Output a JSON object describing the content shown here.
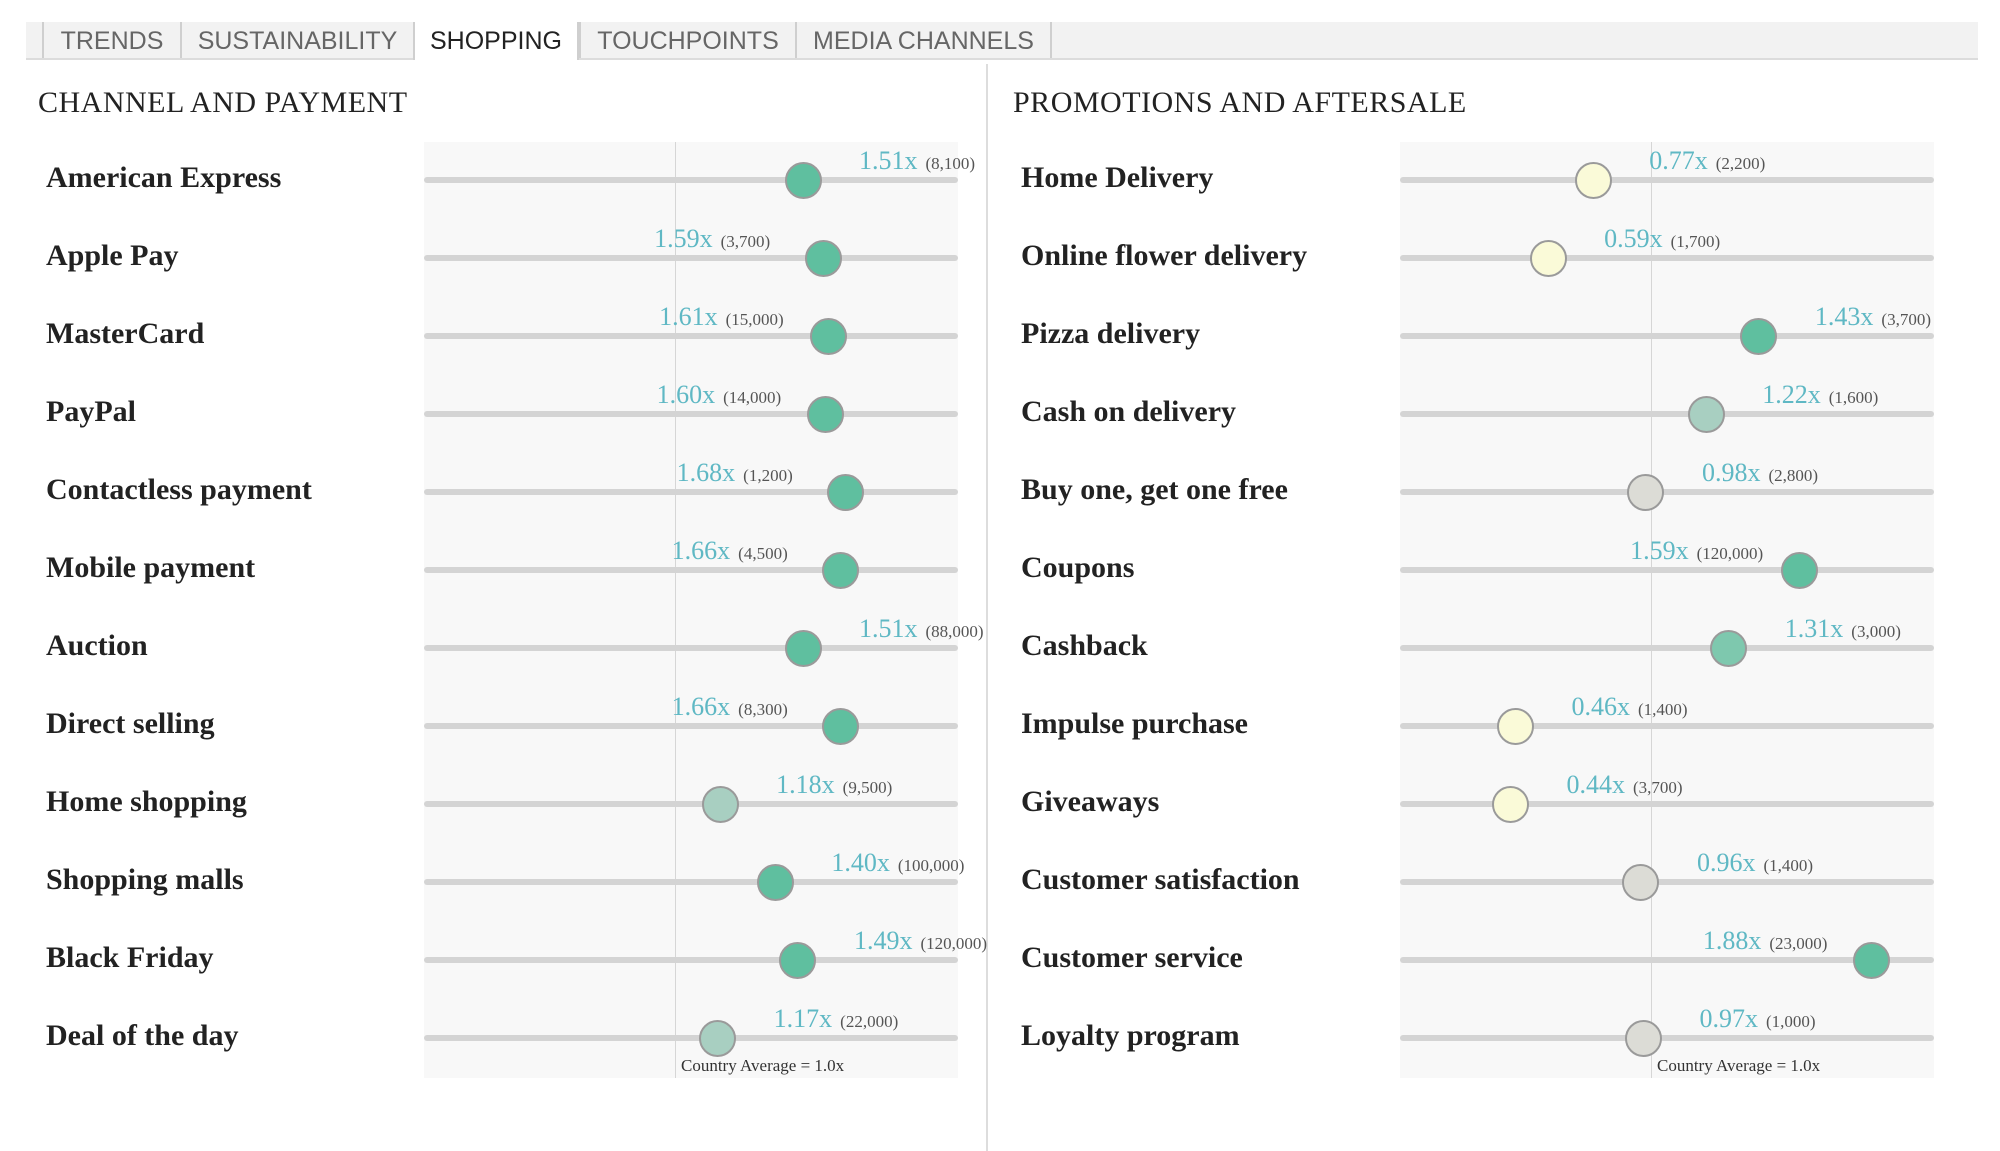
{
  "tabs": [
    {
      "label": "TRENDS",
      "active": false
    },
    {
      "label": "SUSTAINABILITY",
      "active": false
    },
    {
      "label": "SHOPPING",
      "active": true
    },
    {
      "label": "TOUCHPOINTS",
      "active": false
    },
    {
      "label": "MEDIA CHANNELS",
      "active": false
    }
  ],
  "colors": {
    "high": "#5fbf9f",
    "medium_high": "#7ec8ae",
    "medium": "#a8cfc1",
    "neutral": "#dcdcd6",
    "low": "#fafad8",
    "value_text": "#5fb8c4"
  },
  "panels": [
    {
      "title": "CHANNEL AND PAYMENT",
      "average_label": "Country Average = 1.0x",
      "scale": {
        "min": 0.0,
        "max": 2.14,
        "average": 1.0
      },
      "rows": [
        {
          "label": "American Express",
          "index": 1.51,
          "value": "1.51x",
          "count": "(8,100)"
        },
        {
          "label": "Apple Pay",
          "index": 1.59,
          "value": "1.59x",
          "count": "(3,700)"
        },
        {
          "label": "MasterCard",
          "index": 1.61,
          "value": "1.61x",
          "count": "(15,000)"
        },
        {
          "label": "PayPal",
          "index": 1.6,
          "value": "1.60x",
          "count": "(14,000)"
        },
        {
          "label": "Contactless payment",
          "index": 1.68,
          "value": "1.68x",
          "count": "(1,200)"
        },
        {
          "label": "Mobile payment",
          "index": 1.66,
          "value": "1.66x",
          "count": "(4,500)"
        },
        {
          "label": "Auction",
          "index": 1.51,
          "value": "1.51x",
          "count": "(88,000)"
        },
        {
          "label": "Direct selling",
          "index": 1.66,
          "value": "1.66x",
          "count": "(8,300)"
        },
        {
          "label": "Home shopping",
          "index": 1.18,
          "value": "1.18x",
          "count": "(9,500)"
        },
        {
          "label": "Shopping malls",
          "index": 1.4,
          "value": "1.40x",
          "count": "(100,000)"
        },
        {
          "label": "Black Friday",
          "index": 1.49,
          "value": "1.49x",
          "count": "(120,000)"
        },
        {
          "label": "Deal of the day",
          "index": 1.17,
          "value": "1.17x",
          "count": "(22,000)"
        }
      ]
    },
    {
      "title": "PROMOTIONS AND AFTERSALE",
      "average_label": "Country Average = 1.0x",
      "scale": {
        "min": 0.0,
        "max": 2.14,
        "average": 1.0
      },
      "rows": [
        {
          "label": "Home Delivery",
          "index": 0.77,
          "value": "0.77x",
          "count": "(2,200)"
        },
        {
          "label": "Online flower delivery",
          "index": 0.59,
          "value": "0.59x",
          "count": "(1,700)"
        },
        {
          "label": "Pizza delivery",
          "index": 1.43,
          "value": "1.43x",
          "count": "(3,700)"
        },
        {
          "label": "Cash on delivery",
          "index": 1.22,
          "value": "1.22x",
          "count": "(1,600)"
        },
        {
          "label": "Buy one, get one free",
          "index": 0.98,
          "value": "0.98x",
          "count": "(2,800)"
        },
        {
          "label": "Coupons",
          "index": 1.59,
          "value": "1.59x",
          "count": "(120,000)"
        },
        {
          "label": "Cashback",
          "index": 1.31,
          "value": "1.31x",
          "count": "(3,000)"
        },
        {
          "label": "Impulse purchase",
          "index": 0.46,
          "value": "0.46x",
          "count": "(1,400)"
        },
        {
          "label": "Giveaways",
          "index": 0.44,
          "value": "0.44x",
          "count": "(3,700)"
        },
        {
          "label": "Customer satisfaction",
          "index": 0.96,
          "value": "0.96x",
          "count": "(1,400)"
        },
        {
          "label": "Customer service",
          "index": 1.88,
          "value": "1.88x",
          "count": "(23,000)"
        },
        {
          "label": "Loyalty program",
          "index": 0.97,
          "value": "0.97x",
          "count": "(1,000)"
        }
      ]
    }
  ]
}
